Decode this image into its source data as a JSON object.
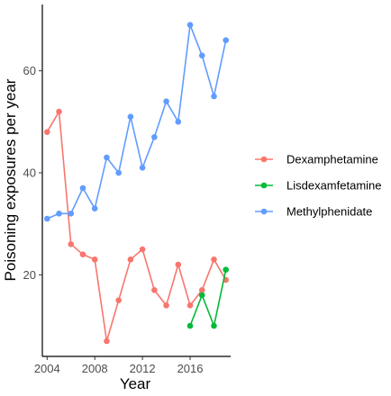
{
  "chart_data": {
    "type": "line",
    "title": "",
    "xlabel": "Year",
    "ylabel": "Poisoning exposures per year",
    "xlim": [
      2003.6,
      2019.4
    ],
    "ylim": [
      4,
      73
    ],
    "x_ticks": [
      2004,
      2008,
      2012,
      2016
    ],
    "y_ticks": [
      20,
      40,
      60
    ],
    "grid": false,
    "legend_position": "right",
    "series": [
      {
        "name": "Dexamphetamine",
        "color": "#F8766D",
        "x": [
          2004,
          2005,
          2006,
          2007,
          2008,
          2009,
          2010,
          2011,
          2012,
          2013,
          2014,
          2015,
          2016,
          2017,
          2018,
          2019
        ],
        "values": [
          48,
          52,
          26,
          24,
          23,
          7,
          15,
          23,
          25,
          17,
          14,
          22,
          14,
          17,
          23,
          19
        ]
      },
      {
        "name": "Lisdexamfetamine",
        "color": "#00BA38",
        "x": [
          2016,
          2017,
          2018,
          2019
        ],
        "values": [
          10,
          16,
          10,
          21
        ]
      },
      {
        "name": "Methylphenidate",
        "color": "#619CFF",
        "x": [
          2004,
          2005,
          2006,
          2007,
          2008,
          2009,
          2010,
          2011,
          2012,
          2013,
          2014,
          2015,
          2016,
          2017,
          2018,
          2019
        ],
        "values": [
          31,
          32,
          32,
          37,
          33,
          43,
          40,
          51,
          41,
          47,
          54,
          50,
          69,
          63,
          55,
          66
        ]
      }
    ]
  }
}
